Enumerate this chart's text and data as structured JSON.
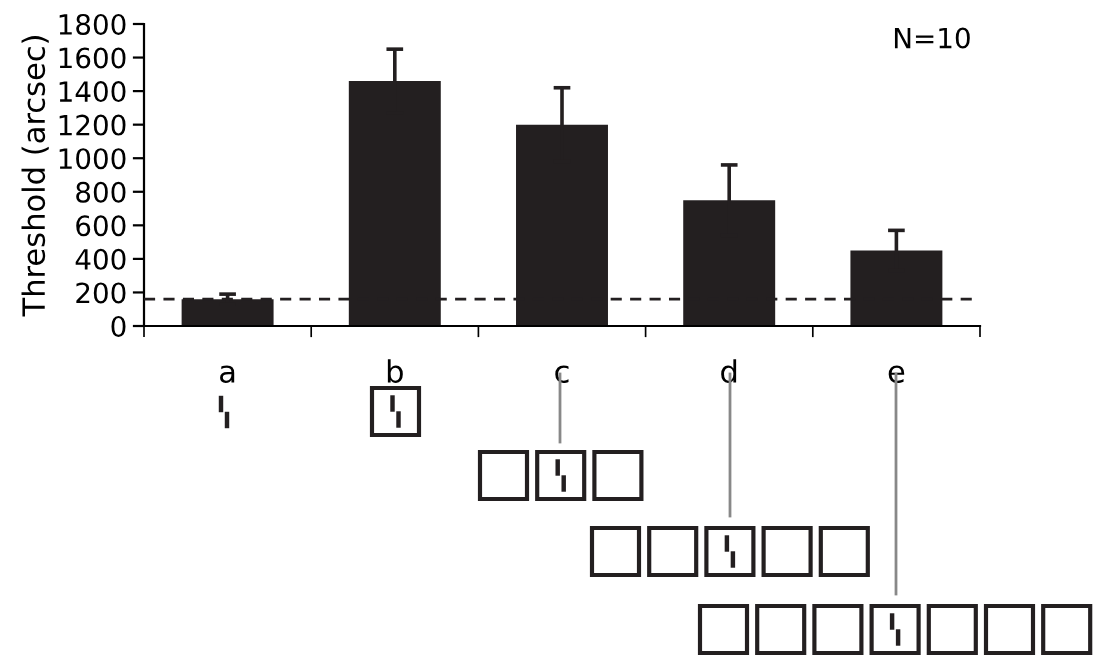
{
  "chart_data": {
    "type": "bar",
    "ylabel": "Threshold (arcsec)",
    "categories": [
      "a",
      "b",
      "c",
      "d",
      "e"
    ],
    "values": [
      160,
      1460,
      1200,
      750,
      450
    ],
    "errors": [
      30,
      190,
      220,
      210,
      120
    ],
    "color": "#231f20",
    "ylim": [
      0,
      1800
    ],
    "yticks": [
      0,
      200,
      400,
      600,
      800,
      1000,
      1200,
      1400,
      1600,
      1800
    ],
    "ref_lines": [
      {
        "axis": "y",
        "value": 160,
        "color": "#231f20",
        "line_style": "dashed"
      }
    ],
    "annotations": [
      "N=10"
    ],
    "grid": false,
    "legend": false
  }
}
